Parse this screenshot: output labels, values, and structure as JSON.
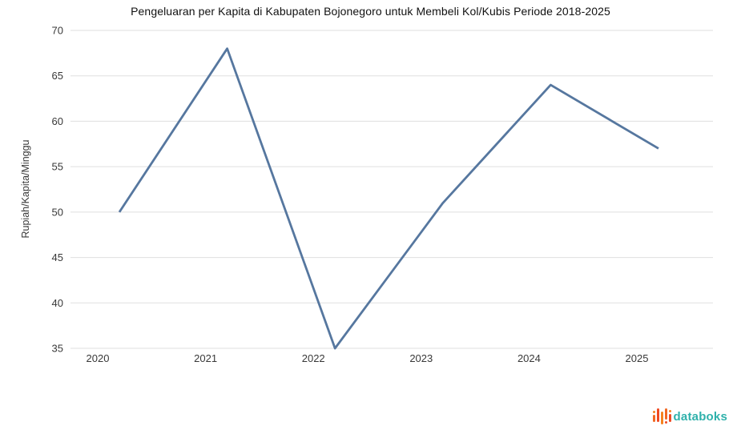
{
  "chart_data": {
    "type": "line",
    "title": "Pengeluaran per Kapita di Kabupaten Bojonegoro untuk Membeli Kol/Kubis Periode 2018-2025",
    "xlabel": "",
    "ylabel": "Rupiah/Kapita/Minggu",
    "categories": [
      "2020",
      "2021",
      "2022",
      "2023",
      "2024",
      "2025"
    ],
    "values": [
      50,
      68,
      35,
      51,
      64,
      57
    ],
    "ylim": [
      35,
      70
    ],
    "yticks": [
      35,
      40,
      45,
      50,
      55,
      60,
      65,
      70
    ],
    "grid": "horizontal",
    "legend": "none",
    "line_color": "#56779f",
    "grid_color": "#dfdfdf",
    "tick_color": "#383838"
  },
  "branding": {
    "logo_text": "databoks",
    "logo_text_color": "#2fb1ab",
    "logo_icon_colors": [
      "#f58220",
      "#ef4a23",
      "#f26822"
    ]
  }
}
